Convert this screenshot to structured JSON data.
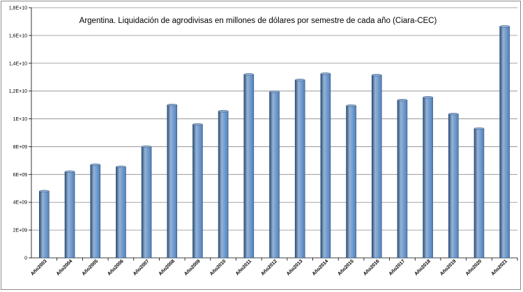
{
  "chart_data": {
    "type": "bar",
    "title": "Argentina. Liquidación de agrodivisas en millones de dólares por semestre de cada año (Ciara-CEC)",
    "xlabel": "",
    "ylabel": "",
    "categories": [
      "Año2003",
      "Año2004",
      "Año2005",
      "Año2006",
      "Año2007",
      "Año2008",
      "Año2009",
      "Año2010",
      "Año2011",
      "Año2012",
      "Año2013",
      "Año2014",
      "Año2015",
      "Año2016",
      "Año2017",
      "Año2018",
      "Año2019",
      "Año2020",
      "Año2021"
    ],
    "values": [
      4800000000.0,
      6200000000.0,
      6700000000.0,
      6550000000.0,
      8000000000.0,
      11000000000.0,
      9600000000.0,
      10550000000.0,
      13200000000.0,
      11950000000.0,
      12800000000.0,
      13250000000.0,
      10950000000.0,
      13150000000.0,
      11350000000.0,
      11550000000.0,
      10350000000.0,
      9300000000.0,
      16650000000.0
    ],
    "ylim": [
      0,
      18000000000.0
    ],
    "yticks": [
      0,
      2000000000.0,
      4000000000.0,
      6000000000.0,
      8000000000.0,
      10000000000.0,
      12000000000.0,
      14000000000.0,
      16000000000.0,
      18000000000.0
    ],
    "ytick_labels": [
      "0",
      "2E+09",
      "4E+09",
      "6E+09",
      "8E+09",
      "1E+10",
      "1,2E+10",
      "1,4E+10",
      "1,6E+10",
      "1,8E+10"
    ],
    "grid": true,
    "legend": "none",
    "colors": {
      "bar": "#4f81bd",
      "bar_dark": "#2c4d75",
      "bar_light": "#95b3d7",
      "grid": "#8a8a8a"
    }
  }
}
